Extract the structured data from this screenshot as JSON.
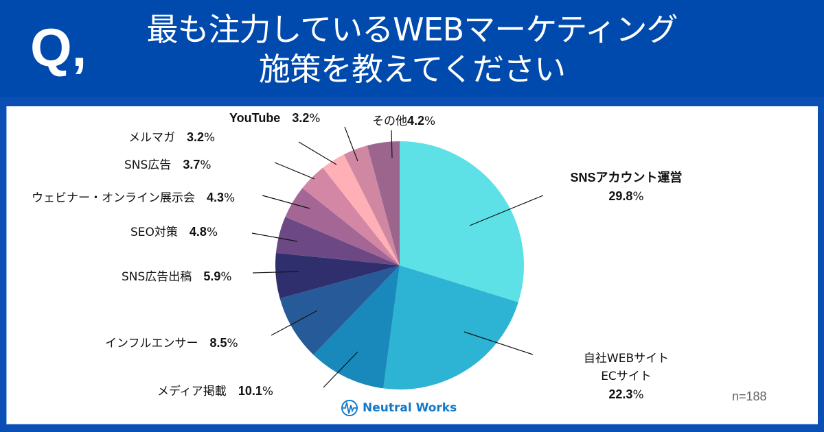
{
  "header": {
    "q_mark": "Q,",
    "title_line1": "最も注力しているWEBマーケティング",
    "title_line2": "施策を教えてください"
  },
  "sample_size": "n=188",
  "brand": {
    "name": "Neutral Works",
    "icon": "neutral-works-logo-icon",
    "color": "#1479c9"
  },
  "colors": {
    "header_bg": "#004aad",
    "frame_bg": "#0b4fb4",
    "panel_bg": "#ffffff"
  },
  "chart_data": {
    "type": "pie",
    "title": "最も注力しているWEBマーケティング施策を教えてください",
    "start_angle": "12 o'clock, clockwise",
    "n": 188,
    "slices": [
      {
        "label": "SNSアカウント運営",
        "value": 29.8,
        "display": "29.8%",
        "color": "#5de1e6"
      },
      {
        "label": "自社WEBサイト ECサイト",
        "value": 22.3,
        "display": "22.3%",
        "color": "#2db3d4"
      },
      {
        "label": "メディア掲載",
        "value": 10.1,
        "display": "10.1%",
        "color": "#1989bb"
      },
      {
        "label": "インフルエンサー",
        "value": 8.5,
        "display": "8.5%",
        "color": "#265a98"
      },
      {
        "label": "SNS広告出稿",
        "value": 5.9,
        "display": "5.9%",
        "color": "#2f2f6e"
      },
      {
        "label": "SEO対策",
        "value": 4.8,
        "display": "4.8%",
        "color": "#6c4984"
      },
      {
        "label": "ウェビナー・オンライン展示会",
        "value": 4.3,
        "display": "4.3%",
        "color": "#a46795"
      },
      {
        "label": "SNS広告",
        "value": 3.7,
        "display": "3.7%",
        "color": "#d387a4"
      },
      {
        "label": "メルマガ",
        "value": 3.2,
        "display": "3.2%",
        "color": "#feb0b6"
      },
      {
        "label": "YouTube",
        "value": 3.2,
        "display": "3.2%",
        "color": "#d088a2"
      },
      {
        "label": "その他",
        "value": 4.2,
        "display": "4.2%",
        "color": "#9c658e"
      }
    ]
  },
  "labels": {
    "sns_account": {
      "name": "SNSアカウント運営",
      "pct": "29.8",
      "unit": "%"
    },
    "own_site": {
      "name1": "自社WEBサイト",
      "name1_b": "WEB",
      "name2": "ECサイト",
      "pct": "22.3",
      "unit": "%"
    },
    "media": {
      "name": "メディア掲載",
      "pct": "10.1",
      "unit": "%"
    },
    "influencer": {
      "name": "インフルエンサー",
      "pct": "8.5",
      "unit": "%"
    },
    "sns_ad_placement": {
      "name": "SNS広告出稿",
      "pct": "5.9",
      "unit": "%"
    },
    "seo": {
      "name": "SEO対策",
      "pct": "4.8",
      "unit": "%"
    },
    "webinar": {
      "name": "ウェビナー・オンライン展示会",
      "pct": "4.3",
      "unit": "%"
    },
    "sns_ad": {
      "name": "SNS広告",
      "pct": "3.7",
      "unit": "%"
    },
    "mailmag": {
      "name": "メルマガ",
      "pct": "3.2",
      "unit": "%"
    },
    "youtube": {
      "name": "YouTube",
      "pct": "3.2",
      "unit": "%"
    },
    "other": {
      "name": "その他",
      "pct": "4.2",
      "unit": "%"
    }
  }
}
